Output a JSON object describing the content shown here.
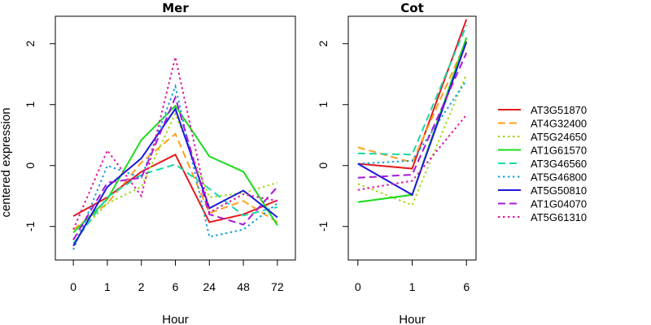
{
  "chart_data": [
    {
      "type": "line",
      "title": "Mer",
      "xlabel": "Hour",
      "ylabel": "centered expression",
      "categories": [
        "0",
        "1",
        "2",
        "6",
        "24",
        "48",
        "72"
      ],
      "ylim": [
        -1.55,
        2.45
      ],
      "yticks": [
        -1,
        0,
        1,
        2
      ],
      "series": [
        {
          "name": "AT3G51870",
          "color": "#e31a1c",
          "dash": "solid",
          "values": [
            -0.83,
            -0.52,
            -0.1,
            0.18,
            -0.93,
            -0.8,
            -0.57
          ]
        },
        {
          "name": "AT4G32400",
          "color": "#ff9f1c",
          "dash": "dashed",
          "values": [
            -1.05,
            -0.62,
            0.05,
            0.52,
            -0.78,
            -0.58,
            -0.93
          ]
        },
        {
          "name": "AT5G24650",
          "color": "#a6d71c",
          "dash": "dotted",
          "values": [
            -1.2,
            -0.62,
            -0.35,
            0.85,
            -0.52,
            -0.45,
            -0.28
          ]
        },
        {
          "name": "AT1G61570",
          "color": "#1adb1a",
          "dash": "solid",
          "values": [
            -1.1,
            -0.55,
            0.42,
            0.98,
            0.15,
            -0.1,
            -0.98
          ]
        },
        {
          "name": "AT3G46560",
          "color": "#1ad9a6",
          "dash": "dashed",
          "values": [
            -1.28,
            -0.52,
            -0.15,
            0.02,
            -0.38,
            -0.82,
            -0.68
          ]
        },
        {
          "name": "AT5G46800",
          "color": "#1a9fdb",
          "dash": "dotted",
          "values": [
            -1.38,
            0.0,
            -0.2,
            1.3,
            -1.17,
            -1.05,
            -0.62
          ]
        },
        {
          "name": "AT5G50810",
          "color": "#1a1adb",
          "dash": "solid",
          "values": [
            -1.32,
            -0.35,
            0.12,
            0.93,
            -0.7,
            -0.41,
            -0.85
          ]
        },
        {
          "name": "AT1G04070",
          "color": "#a61ad9",
          "dash": "dashed",
          "values": [
            -1.22,
            -0.28,
            -0.2,
            1.12,
            -0.8,
            -0.97,
            -0.35
          ]
        },
        {
          "name": "AT5G61310",
          "color": "#db1a9f",
          "dash": "dotted",
          "values": [
            -1.05,
            0.25,
            -0.5,
            1.78,
            -0.77,
            -0.47,
            -0.58
          ]
        }
      ]
    },
    {
      "type": "line",
      "title": "Cot",
      "xlabel": "Hour",
      "ylabel": "",
      "categories": [
        "0",
        "1",
        "6"
      ],
      "ylim": [
        -1.55,
        2.45
      ],
      "yticks": [
        -1,
        0,
        1,
        2
      ],
      "series": [
        {
          "name": "AT3G51870",
          "color": "#e31a1c",
          "dash": "solid",
          "values": [
            0.03,
            -0.05,
            2.4
          ]
        },
        {
          "name": "AT4G32400",
          "color": "#ff9f1c",
          "dash": "dashed",
          "values": [
            0.3,
            0.05,
            2.05
          ]
        },
        {
          "name": "AT5G24650",
          "color": "#a6d71c",
          "dash": "dotted",
          "values": [
            -0.3,
            -0.65,
            1.5
          ]
        },
        {
          "name": "AT1G61570",
          "color": "#1adb1a",
          "dash": "solid",
          "values": [
            -0.6,
            -0.48,
            2.1
          ]
        },
        {
          "name": "AT3G46560",
          "color": "#1ad9a6",
          "dash": "dashed",
          "values": [
            0.2,
            0.18,
            2.3
          ]
        },
        {
          "name": "AT5G46800",
          "color": "#1a9fdb",
          "dash": "dotted",
          "values": [
            0.03,
            0.08,
            1.4
          ]
        },
        {
          "name": "AT5G50810",
          "color": "#1a1adb",
          "dash": "solid",
          "values": [
            0.03,
            -0.48,
            2.03
          ]
        },
        {
          "name": "AT1G04070",
          "color": "#a61ad9",
          "dash": "dashed",
          "values": [
            -0.2,
            -0.15,
            1.85
          ]
        },
        {
          "name": "AT5G61310",
          "color": "#db1a9f",
          "dash": "dotted",
          "values": [
            -0.4,
            -0.25,
            0.83
          ]
        }
      ]
    }
  ]
}
